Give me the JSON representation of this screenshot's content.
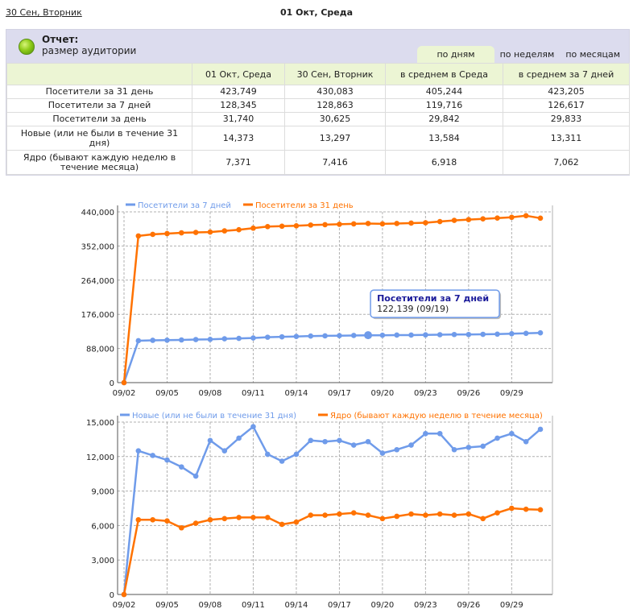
{
  "nav": {
    "prev_date": "30 Сен, Вторник",
    "current_date": "01 Окт, Среда"
  },
  "report": {
    "title": "Отчет:",
    "subtitle": "размер аудитории",
    "periods": [
      "по дням",
      "по неделям",
      "по месяцам"
    ],
    "active_period": "по дням",
    "columns": [
      "",
      "01 Окт, Среда",
      "30 Сен, Вторник",
      "в среднем в Среда",
      "в среднем за 7 дней"
    ],
    "rows": [
      {
        "label": "Посетители за 31 день",
        "values": [
          "423,749",
          "430,083",
          "405,244",
          "423,205"
        ]
      },
      {
        "label": "Посетители за 7 дней",
        "values": [
          "128,345",
          "128,863",
          "119,716",
          "126,617"
        ]
      },
      {
        "label": "Посетители за день",
        "values": [
          "31,740",
          "30,625",
          "29,842",
          "29,833"
        ]
      },
      {
        "label": "Новые (или не были в течение 31 дня)",
        "values": [
          "14,373",
          "13,297",
          "13,584",
          "13,311"
        ]
      },
      {
        "label": "Ядро (бывают каждую неделю в течение месяца)",
        "values": [
          "7,371",
          "7,416",
          "6,918",
          "7,062"
        ]
      }
    ]
  },
  "colors": {
    "blue": "#6f9bea",
    "orange": "#ff7200",
    "grid": "#b0b0b0",
    "tooltip_title": "#1a1a99"
  },
  "chart_data": [
    {
      "type": "line",
      "title": "",
      "xlabel": "",
      "ylabel": "",
      "x": [
        "09/02",
        "09/03",
        "09/04",
        "09/05",
        "09/06",
        "09/07",
        "09/08",
        "09/09",
        "09/10",
        "09/11",
        "09/12",
        "09/13",
        "09/14",
        "09/15",
        "09/16",
        "09/17",
        "09/18",
        "09/19",
        "09/20",
        "09/21",
        "09/22",
        "09/23",
        "09/24",
        "09/25",
        "09/26",
        "09/27",
        "09/28",
        "09/29",
        "09/30",
        "10/01"
      ],
      "x_tick_labels": [
        "09/02",
        "09/05",
        "09/08",
        "09/11",
        "09/14",
        "09/17",
        "09/20",
        "09/23",
        "09/26",
        "09/29"
      ],
      "ylim": [
        0,
        440000
      ],
      "y_ticks": [
        "0",
        "88,000",
        "176,000",
        "264,000",
        "352,000",
        "440,000"
      ],
      "legend": "top-left",
      "grid": true,
      "series": [
        {
          "name": "Посетители за 7 дней",
          "color": "blue",
          "values": [
            0,
            108000,
            109000,
            109500,
            110000,
            111000,
            111500,
            113000,
            114000,
            115000,
            117000,
            118000,
            119000,
            120000,
            120500,
            121000,
            121500,
            122139,
            122000,
            122500,
            122500,
            123000,
            123500,
            124000,
            124000,
            124500,
            125000,
            126000,
            127000,
            128345
          ]
        },
        {
          "name": "Посетители за 31 день",
          "color": "orange",
          "values": [
            0,
            378000,
            382000,
            384000,
            386000,
            387000,
            388000,
            391000,
            394000,
            398000,
            402000,
            403000,
            404000,
            406000,
            407000,
            408000,
            409000,
            410000,
            409000,
            410000,
            411000,
            412000,
            415000,
            418000,
            420000,
            422000,
            424000,
            426000,
            430083,
            423749
          ]
        }
      ],
      "tooltip": {
        "title": "Посетители за 7 дней",
        "value": "122,139 (09/19)",
        "series_index": 0,
        "point_index": 17
      }
    },
    {
      "type": "line",
      "title": "",
      "xlabel": "",
      "ylabel": "",
      "x": [
        "09/02",
        "09/03",
        "09/04",
        "09/05",
        "09/06",
        "09/07",
        "09/08",
        "09/09",
        "09/10",
        "09/11",
        "09/12",
        "09/13",
        "09/14",
        "09/15",
        "09/16",
        "09/17",
        "09/18",
        "09/19",
        "09/20",
        "09/21",
        "09/22",
        "09/23",
        "09/24",
        "09/25",
        "09/26",
        "09/27",
        "09/28",
        "09/29",
        "09/30",
        "10/01"
      ],
      "x_tick_labels": [
        "09/02",
        "09/05",
        "09/08",
        "09/11",
        "09/14",
        "09/17",
        "09/20",
        "09/23",
        "09/26",
        "09/29"
      ],
      "ylim": [
        0,
        15000
      ],
      "y_ticks": [
        "0",
        "3,000",
        "6,000",
        "9,000",
        "12,000",
        "15,000"
      ],
      "legend": "top-left",
      "grid": true,
      "series": [
        {
          "name": "Новые (или не были в течение 31 дня)",
          "color": "blue",
          "values": [
            0,
            12500,
            12100,
            11700,
            11100,
            10300,
            13400,
            12500,
            13600,
            14600,
            12200,
            11600,
            12200,
            13400,
            13300,
            13400,
            13000,
            13300,
            12300,
            12600,
            13000,
            14000,
            14000,
            12600,
            12800,
            12900,
            13600,
            14000,
            13297,
            14373
          ]
        },
        {
          "name": "Ядро (бывают каждую неделю в течение месяца)",
          "color": "orange",
          "values": [
            0,
            6500,
            6500,
            6400,
            5800,
            6200,
            6500,
            6600,
            6700,
            6700,
            6700,
            6100,
            6300,
            6900,
            6900,
            7000,
            7100,
            6900,
            6600,
            6800,
            7000,
            6900,
            7000,
            6900,
            7000,
            6600,
            7100,
            7500,
            7416,
            7371
          ]
        }
      ]
    }
  ]
}
